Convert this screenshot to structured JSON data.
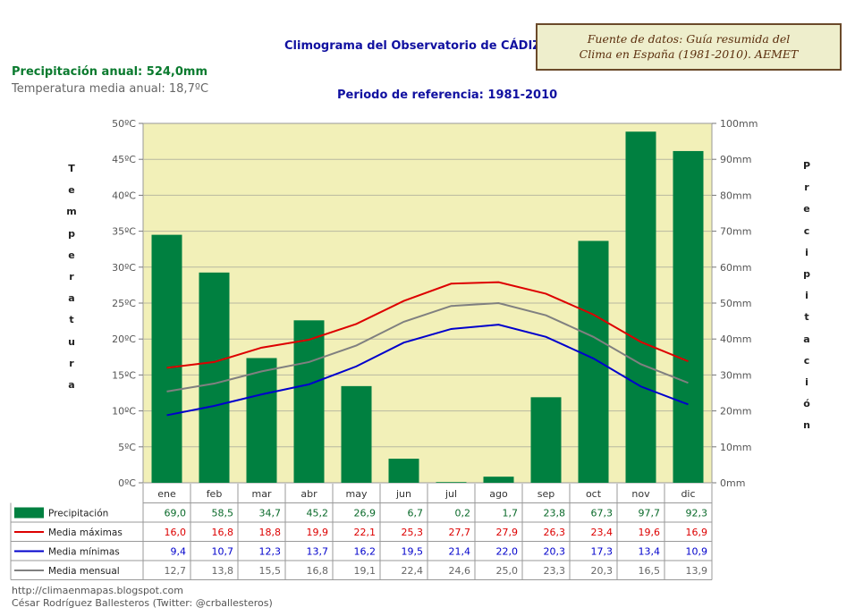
{
  "title": "Climograma del Observatorio de CÁDIZ,OBS.",
  "period": "Periodo de referencia: 1981-2010",
  "precip_annual": "Precipitación anual: 524,0mm",
  "temp_annual": "Temperatura media anual: 18,7ºC",
  "source_line1": "Fuente de datos: Guía resumida del",
  "source_line2": "Clima en España (1981-2010). AEMET",
  "ylabel_left": "Temperatura",
  "ylabel_right": "Precipitación",
  "credit_line1": "http://climaenmapas.blogspot.com",
  "credit_line2": "César Rodríguez Ballesteros (Twitter: @crballesteros)",
  "colors": {
    "plot_bg": "#f2f0b8",
    "precip": "#008040",
    "max": "#dd0000",
    "min": "#0000cc",
    "mean": "#808080"
  },
  "chart_data": {
    "type": "bar",
    "title": "Climograma del Observatorio de CÁDIZ,OBS.",
    "categories": [
      "ene",
      "feb",
      "mar",
      "abr",
      "may",
      "jun",
      "jul",
      "ago",
      "sep",
      "oct",
      "nov",
      "dic"
    ],
    "y_left": {
      "label": "Temperatura",
      "unit": "ºC",
      "range": [
        0,
        50
      ],
      "ticks": [
        "0ºC",
        "5ºC",
        "10ºC",
        "15ºC",
        "20ºC",
        "25ºC",
        "30ºC",
        "35ºC",
        "40ºC",
        "45ºC",
        "50ºC"
      ]
    },
    "y_right": {
      "label": "Precipitación",
      "unit": "mm",
      "range": [
        0,
        100
      ],
      "ticks": [
        "0mm",
        "10mm",
        "20mm",
        "30mm",
        "40mm",
        "50mm",
        "60mm",
        "70mm",
        "80mm",
        "90mm",
        "100mm"
      ]
    },
    "series": [
      {
        "name": "Precipitación",
        "type": "bar",
        "axis": "right",
        "values": [
          69.0,
          58.5,
          34.7,
          45.2,
          26.9,
          6.7,
          0.2,
          1.7,
          23.8,
          67.3,
          97.7,
          92.3
        ],
        "labels": [
          "69,0",
          "58,5",
          "34,7",
          "45,2",
          "26,9",
          "6,7",
          "0,2",
          "1,7",
          "23,8",
          "67,3",
          "97,7",
          "92,3"
        ]
      },
      {
        "name": "Media máximas",
        "type": "line",
        "axis": "left",
        "values": [
          16.0,
          16.8,
          18.8,
          19.9,
          22.1,
          25.3,
          27.7,
          27.9,
          26.3,
          23.4,
          19.6,
          16.9
        ],
        "labels": [
          "16,0",
          "16,8",
          "18,8",
          "19,9",
          "22,1",
          "25,3",
          "27,7",
          "27,9",
          "26,3",
          "23,4",
          "19,6",
          "16,9"
        ]
      },
      {
        "name": "Media mínimas",
        "type": "line",
        "axis": "left",
        "values": [
          9.4,
          10.7,
          12.3,
          13.7,
          16.2,
          19.5,
          21.4,
          22.0,
          20.3,
          17.3,
          13.4,
          10.9
        ],
        "labels": [
          "9,4",
          "10,7",
          "12,3",
          "13,7",
          "16,2",
          "19,5",
          "21,4",
          "22,0",
          "20,3",
          "17,3",
          "13,4",
          "10,9"
        ]
      },
      {
        "name": "Media mensual",
        "type": "line",
        "axis": "left",
        "values": [
          12.7,
          13.8,
          15.5,
          16.8,
          19.1,
          22.4,
          24.6,
          25.0,
          23.3,
          20.3,
          16.5,
          13.9
        ],
        "labels": [
          "12,7",
          "13,8",
          "15,5",
          "16,8",
          "19,1",
          "22,4",
          "24,6",
          "25,0",
          "23,3",
          "20,3",
          "16,5",
          "13,9"
        ]
      }
    ]
  }
}
